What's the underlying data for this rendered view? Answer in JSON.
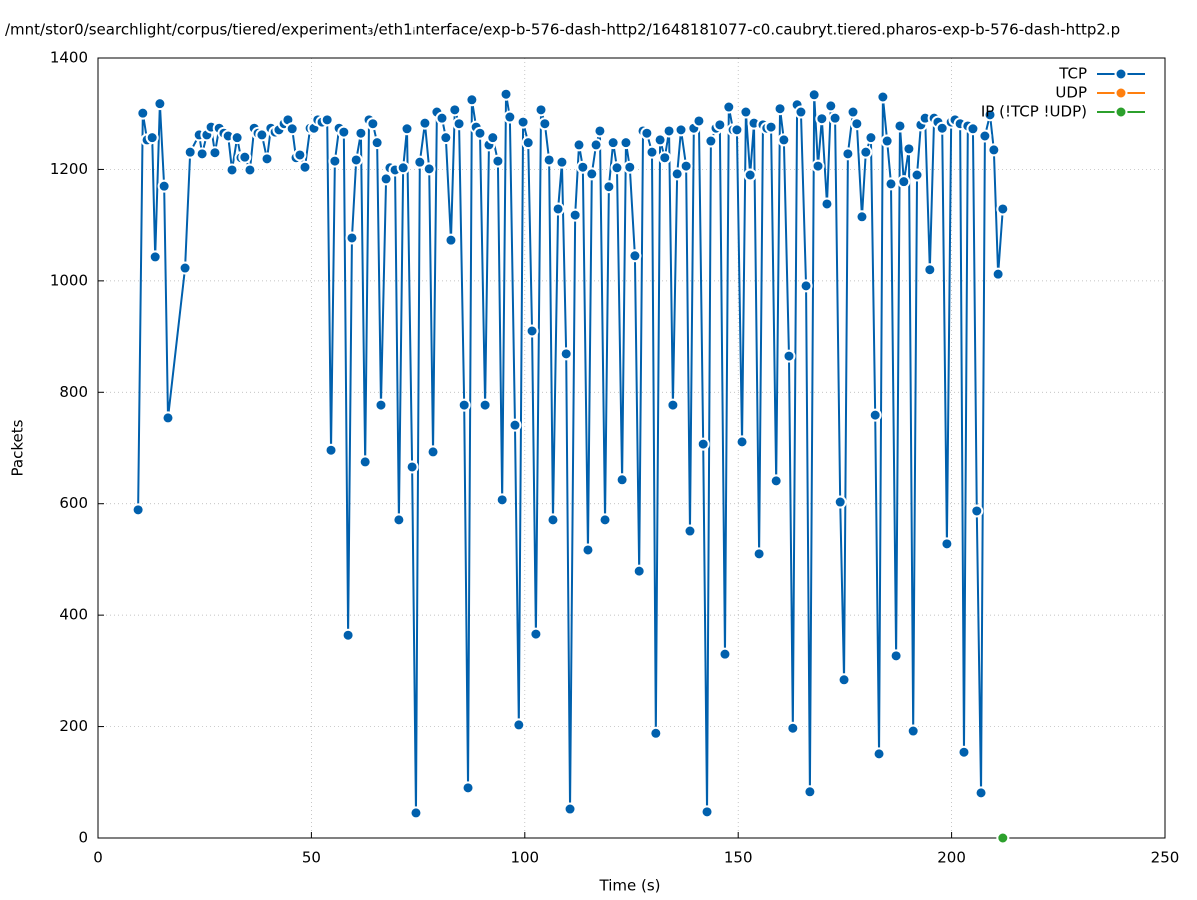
{
  "chart_data": {
    "type": "line",
    "title": "/mnt/stor0/searchlight/corpus/tiered/experiment₃/eth1ᵢnterface/exp-b-576-dash-http2/1648181077-c0.caubryt.tiered.pharos-exp-b-576-dash-http2.p",
    "xlabel": "Time (s)",
    "ylabel": "Packets",
    "xlim": [
      0,
      250
    ],
    "xticks": [
      0,
      50,
      100,
      150,
      200,
      250
    ],
    "ylim": [
      0,
      1400
    ],
    "yticks": [
      0,
      200,
      400,
      600,
      800,
      1000,
      1200,
      1400
    ],
    "grid": true,
    "legend": "top-right",
    "series": [
      {
        "name": "TCP",
        "color": "#0060ad",
        "x": [
          9.4,
          10.5,
          11.5,
          12.7,
          13.4,
          14.5,
          15.5,
          16.4,
          20.4,
          21.6,
          23.7,
          24.4,
          25.5,
          26.5,
          27.4,
          28.4,
          29.5,
          30.5,
          31.4,
          32.6,
          33.5,
          34.4,
          35.6,
          36.6,
          37.5,
          38.4,
          39.6,
          40.5,
          41.5,
          42.4,
          43.6,
          44.5,
          45.5,
          46.4,
          47.3,
          48.5,
          49.7,
          50.6,
          51.5,
          52.5,
          53.7,
          54.6,
          55.5,
          56.5,
          57.6,
          58.6,
          59.5,
          60.5,
          61.6,
          62.6,
          63.5,
          64.4,
          65.4,
          66.3,
          67.5,
          68.4,
          69.6,
          70.5,
          71.5,
          72.4,
          73.6,
          74.5,
          75.4,
          76.6,
          77.6,
          78.5,
          79.4,
          80.6,
          81.5,
          82.7,
          83.6,
          84.6,
          85.8,
          86.7,
          87.6,
          88.6,
          89.5,
          90.7,
          91.6,
          92.5,
          93.7,
          94.7,
          95.6,
          96.5,
          97.7,
          98.6,
          99.6,
          100.8,
          101.7,
          102.6,
          103.8,
          104.7,
          105.7,
          106.6,
          107.8,
          108.7,
          109.7,
          110.6,
          111.8,
          112.7,
          113.6,
          114.8,
          115.7,
          116.7,
          117.6,
          118.8,
          119.7,
          120.7,
          121.6,
          122.8,
          123.7,
          124.6,
          125.8,
          126.8,
          127.7,
          128.6,
          129.8,
          130.7,
          131.7,
          132.8,
          133.8,
          134.7,
          135.7,
          136.6,
          137.8,
          138.7,
          139.6,
          140.8,
          141.8,
          142.7,
          143.6,
          144.8,
          145.7,
          146.9,
          147.8,
          148.8,
          149.7,
          150.9,
          151.8,
          152.8,
          153.7,
          154.9,
          155.8,
          156.7,
          157.7,
          158.9,
          159.8,
          160.7,
          161.9,
          162.8,
          163.8,
          164.7,
          165.9,
          166.8,
          167.8,
          168.7,
          169.6,
          170.8,
          171.7,
          172.7,
          173.9,
          174.8,
          175.7,
          176.9,
          177.8,
          179.0,
          179.9,
          181.1,
          182.1,
          183.0,
          183.9,
          184.9,
          185.8,
          187.0,
          187.9,
          188.8,
          190.0,
          191.0,
          191.9,
          192.8,
          193.8,
          194.9,
          195.9,
          196.8,
          197.8,
          198.9,
          199.9,
          200.8,
          202.0,
          202.9,
          203.8,
          205.0,
          205.9,
          206.9,
          207.8,
          209.0,
          209.9,
          210.9,
          212.0
        ],
        "values": [
          589,
          1301,
          1253,
          1257,
          1043,
          1318,
          1170,
          754,
          1023,
          1231,
          1262,
          1228,
          1262,
          1276,
          1230,
          1274,
          1265,
          1260,
          1199,
          1257,
          1221,
          1222,
          1199,
          1274,
          1265,
          1262,
          1219,
          1274,
          1267,
          1271,
          1282,
          1289,
          1273,
          1221,
          1226,
          1204,
          1274,
          1274,
          1289,
          1285,
          1289,
          696,
          1215,
          1274,
          1267,
          364,
          1077,
          1217,
          1265,
          675,
          1289,
          1282,
          1248,
          777,
          1183,
          1203,
          1199,
          571,
          1203,
          1273,
          666,
          45,
          1213,
          1283,
          1201,
          693,
          1303,
          1292,
          1257,
          1073,
          1307,
          1282,
          777,
          90,
          1325,
          1276,
          1265,
          777,
          1244,
          1257,
          1215,
          607,
          1335,
          1294,
          741,
          203,
          1285,
          1248,
          910,
          366,
          1307,
          1282,
          1217,
          571,
          1129,
          1213,
          869,
          52,
          1118,
          1244,
          1204,
          517,
          1192,
          1244,
          1269,
          571,
          1169,
          1248,
          1203,
          643,
          1248,
          1204,
          1045,
          479,
          1269,
          1265,
          1231,
          188,
          1253,
          1221,
          1269,
          777,
          1192,
          1271,
          1206,
          551,
          1274,
          1287,
          707,
          47,
          1251,
          1274,
          1280,
          330,
          1312,
          1271,
          1271,
          711,
          1303,
          1190,
          1283,
          510,
          1280,
          1274,
          1276,
          641,
          1309,
          1253,
          865,
          197,
          1316,
          1303,
          991,
          83,
          1334,
          1206,
          1291,
          1138,
          1314,
          1292,
          603,
          284,
          1228,
          1303,
          1282,
          1115,
          1231,
          1257,
          759,
          151,
          1330,
          1251,
          1174,
          327,
          1278,
          1178,
          1237,
          192,
          1190,
          1280,
          1292,
          1020,
          1292,
          1285,
          1274,
          528,
          1285,
          1289,
          1282,
          154,
          1278,
          1273,
          587,
          81,
          1260,
          1298,
          1235,
          1012,
          1129
        ]
      },
      {
        "name": "UDP",
        "color": "#ff7f0e",
        "x": [],
        "values": []
      },
      {
        "name": "IP (!TCP  !UDP)",
        "color": "#2ca02c",
        "x": [
          212.0
        ],
        "values": [
          0
        ]
      }
    ]
  }
}
